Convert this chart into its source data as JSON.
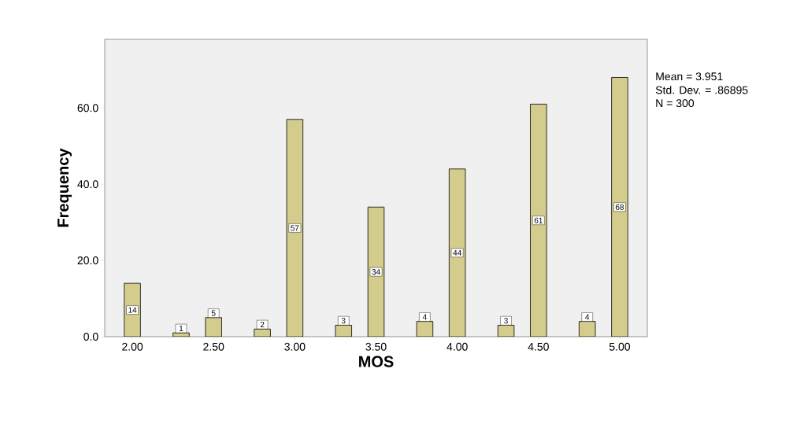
{
  "chart_data": {
    "type": "bar",
    "xlabel": "MOS",
    "ylabel": "Frequency",
    "x": [
      2.0,
      2.3,
      2.5,
      2.8,
      3.0,
      3.3,
      3.5,
      3.8,
      4.0,
      4.3,
      4.5,
      4.8,
      5.0
    ],
    "values": [
      14,
      1,
      5,
      2,
      57,
      3,
      34,
      4,
      44,
      3,
      61,
      4,
      68
    ],
    "color": "#d4cc8c",
    "data_labels": true,
    "xlim": [
      1.83,
      5.17
    ],
    "ylim": [
      0,
      78
    ],
    "xticks": [
      {
        "value": 2,
        "label": "2.00"
      },
      {
        "value": 2.5,
        "label": "2.50"
      },
      {
        "value": 3,
        "label": "3.00"
      },
      {
        "value": 3.5,
        "label": "3.50"
      },
      {
        "value": 4,
        "label": "4.00"
      },
      {
        "value": 4.5,
        "label": "4.50"
      },
      {
        "value": 5,
        "label": "5.00"
      }
    ],
    "yticks": [
      {
        "value": 0,
        "label": "0.0"
      },
      {
        "value": 20,
        "label": "20.0"
      },
      {
        "value": 40,
        "label": "40.0"
      },
      {
        "value": 60,
        "label": "60.0"
      }
    ],
    "annotations": [
      "Mean = 3.951",
      "Std. Dev. = .86895",
      "N = 300"
    ]
  }
}
